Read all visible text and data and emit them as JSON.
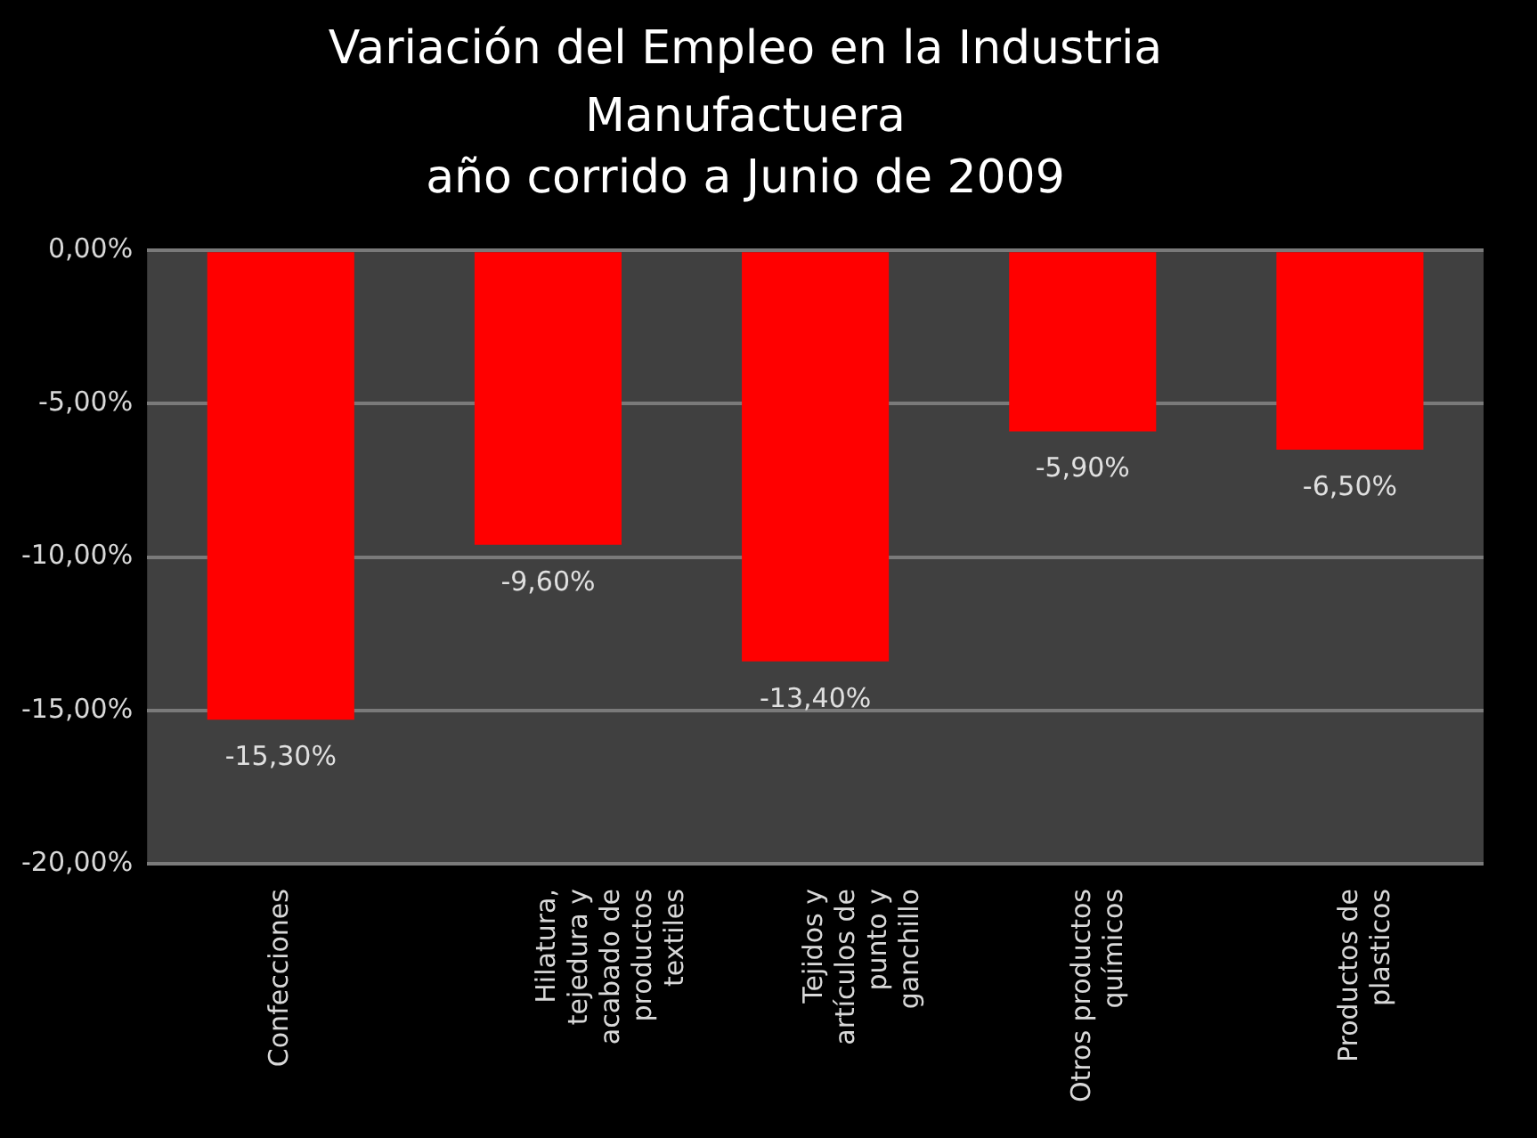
{
  "chart_data": {
    "type": "bar",
    "title": "Variación del Empleo en la Industria Manufactuera",
    "subtitle": "año corrido a Junio de 2009",
    "categories": [
      "Confecciones",
      "Hilatura, tejedura y acabado de productos textiles",
      "Tejidos y artículos de punto y ganchillo",
      "Otros productos químicos",
      "Productos de plasticos"
    ],
    "values": [
      -15.3,
      -9.6,
      -13.4,
      -5.9,
      -6.5
    ],
    "value_labels": [
      "-15,30%",
      "-9,60%",
      "-13,40%",
      "-5,90%",
      "-6,50%"
    ],
    "color": "#ff0000",
    "ylim": [
      -20,
      0
    ],
    "yticks": [
      {
        "value": 0,
        "label": "0,00%"
      },
      {
        "value": -5,
        "label": "-5,00%"
      },
      {
        "value": -10,
        "label": "-10,00%"
      },
      {
        "value": -15,
        "label": "-15,00%"
      },
      {
        "value": -20,
        "label": "-20,00%"
      }
    ],
    "grid": "y",
    "legend": false
  }
}
